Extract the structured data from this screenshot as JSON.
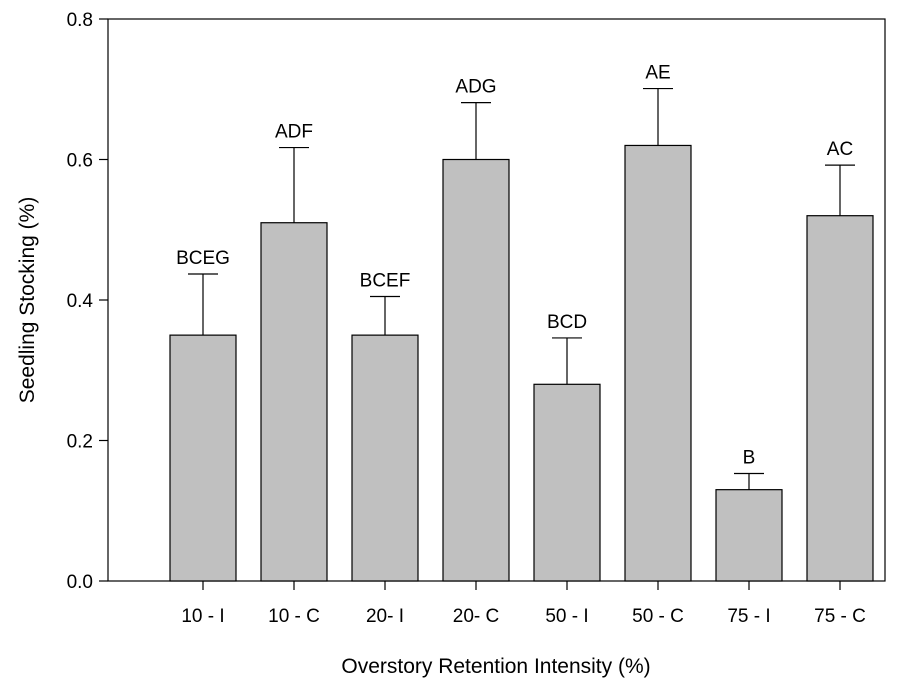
{
  "chart_data": {
    "type": "bar",
    "title": "",
    "xlabel": "Overstory Retention Intensity (%)",
    "ylabel": "Seedling Stocking (%)",
    "ylim": [
      0,
      0.8
    ],
    "yticks": [
      "0.0",
      "0.2",
      "0.4",
      "0.6",
      "0.8"
    ],
    "categories": [
      "10 - I",
      "10 - C",
      "20- I",
      "20- C",
      "50 - I",
      "50 - C",
      "75 - I",
      "75 - C"
    ],
    "values": [
      0.35,
      0.51,
      0.35,
      0.6,
      0.28,
      0.62,
      0.13,
      0.52
    ],
    "error_upper": [
      0.437,
      0.617,
      0.405,
      0.681,
      0.346,
      0.701,
      0.153,
      0.592
    ],
    "letters": [
      "BCEG",
      "ADF",
      "BCEF",
      "ADG",
      "BCD",
      "AE",
      "B",
      "AC"
    ],
    "bar_color": "#c0c0c0",
    "grid": false,
    "legend": "none"
  }
}
